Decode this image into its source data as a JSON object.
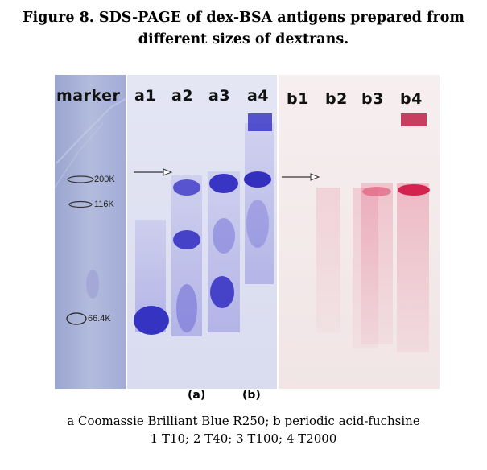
{
  "figure": {
    "title_line1": "Figure 8. SDS-PAGE of dex-BSA antigens prepared from",
    "title_line2": "different sizes of dextrans."
  },
  "gel": {
    "lane_labels": {
      "marker": "marker",
      "a1": "a1",
      "a2": "a2",
      "a3": "a3",
      "a4": "a4",
      "b1": "b1",
      "b2": "b2",
      "b3": "b3",
      "b4": "b4"
    },
    "marker_bands": [
      "200K",
      "116K",
      "66.4K"
    ],
    "panel_labels": {
      "a": "(a)",
      "b": "(b)"
    },
    "colors": {
      "marker_bg": "#a9b3d6",
      "coomassie_bg": "#dde0f1",
      "coomassie_band": "#3a36c4",
      "fuchsine_bg": "#f3eaea",
      "fuchsine_band": "#d8345e"
    }
  },
  "caption": {
    "line1": "a Coomassie Brilliant Blue R250; b periodic acid-fuchsine",
    "line2": "1 T10; 2 T40; 3 T100; 4 T2000"
  }
}
